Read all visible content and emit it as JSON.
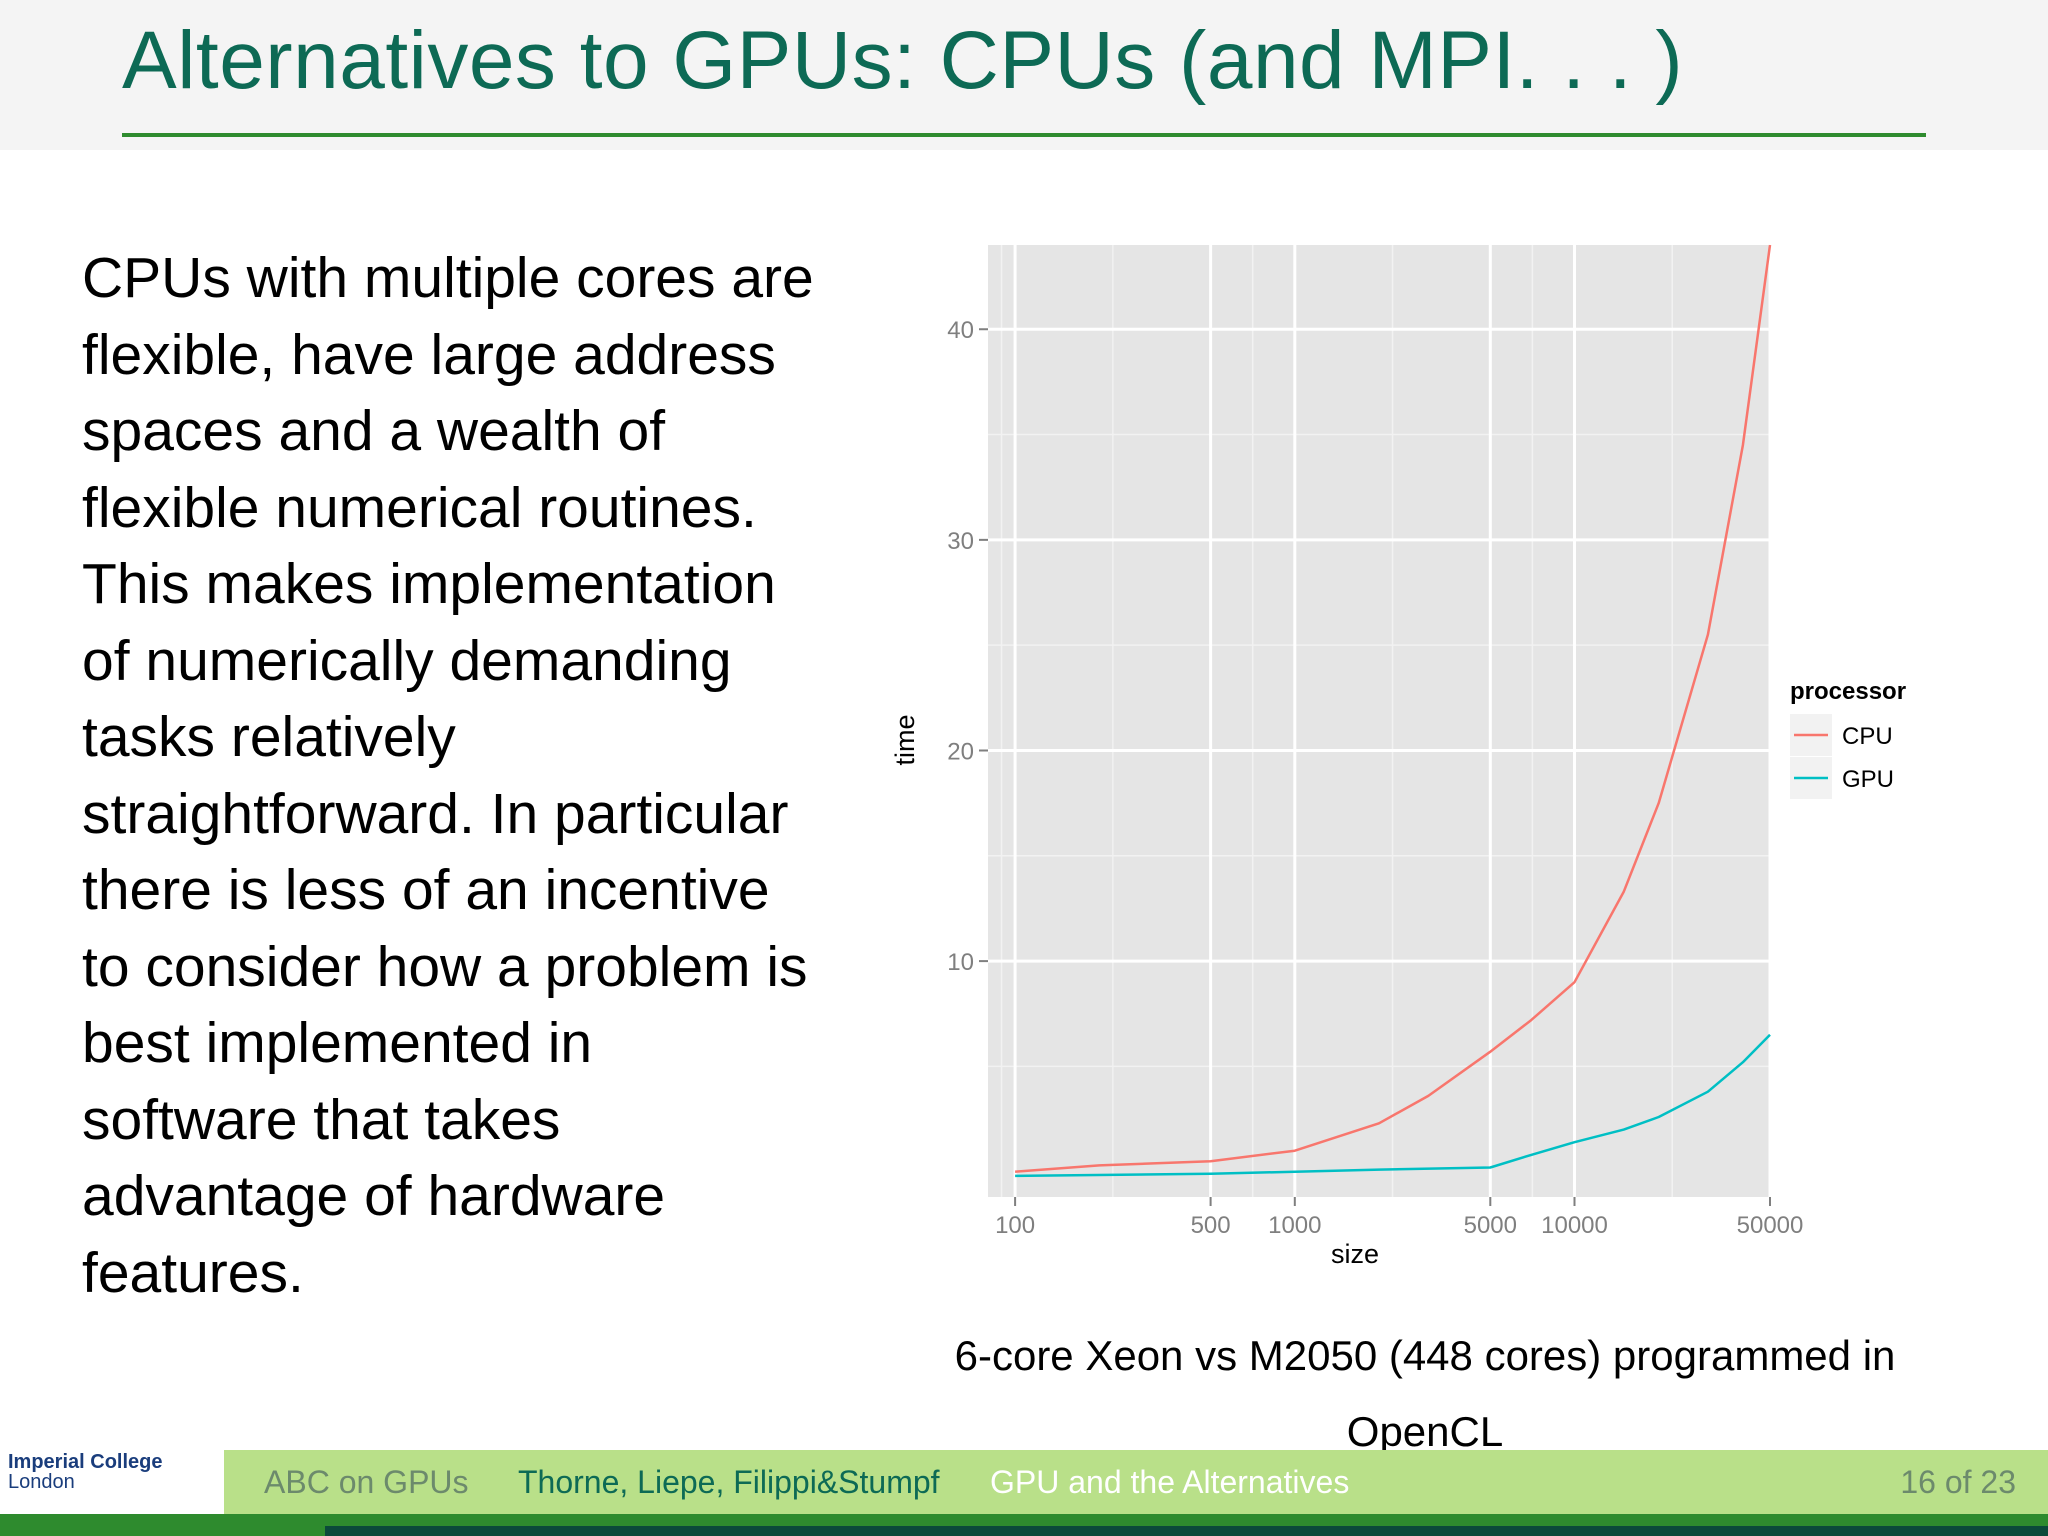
{
  "slide": {
    "title": "Alternatives to GPUs: CPUs (and MPI. . . )",
    "body": "CPUs with multiple cores are flexible, have large address spaces and a wealth of flexible numerical routines. This makes implementation of numerically demanding tasks relatively straightforward. In particular there is less of an incentive to consider how a problem is best implemented in software that takes advantage of hardware features.",
    "caption": "6-core Xeon vs M2050 (448 cores) programmed in OpenCL"
  },
  "footer": {
    "logo_line1": "Imperial College",
    "logo_line2": "London",
    "short_title": "ABC on GPUs",
    "authors": "Thorne, Liepe, Filippi&Stumpf",
    "section": "GPU and the Alternatives",
    "page": "16 of 23"
  },
  "chart_data": {
    "type": "line",
    "xlabel": "size",
    "ylabel": "time",
    "x_scale": "log10",
    "xlim": [
      80,
      50000
    ],
    "ylim": [
      -1.2,
      44
    ],
    "x_ticks": [
      100,
      500,
      1000,
      5000,
      10000,
      50000
    ],
    "x_tick_labels": [
      "100",
      "500",
      "1000",
      "5000",
      "10000",
      "50000"
    ],
    "y_ticks": [
      10,
      20,
      30,
      40
    ],
    "y_tick_labels": [
      "10",
      "20",
      "30",
      "40"
    ],
    "grid": true,
    "legend": {
      "title": "processor",
      "placement": "right"
    },
    "series": [
      {
        "name": "CPU",
        "color": "#f8766d",
        "points": [
          [
            100,
            0.0
          ],
          [
            200,
            0.3
          ],
          [
            500,
            0.5
          ],
          [
            1000,
            1.0
          ],
          [
            2000,
            2.3
          ],
          [
            3000,
            3.6
          ],
          [
            5000,
            5.7
          ],
          [
            7000,
            7.2
          ],
          [
            10000,
            9.0
          ],
          [
            15000,
            13.3
          ],
          [
            20000,
            17.5
          ],
          [
            30000,
            25.5
          ],
          [
            40000,
            34.5
          ],
          [
            50000,
            44.0
          ]
        ]
      },
      {
        "name": "GPU",
        "color": "#00bfc4",
        "points": [
          [
            100,
            -0.2
          ],
          [
            500,
            -0.1
          ],
          [
            1000,
            0.0
          ],
          [
            2000,
            0.1
          ],
          [
            5000,
            0.2
          ],
          [
            7000,
            0.8
          ],
          [
            10000,
            1.4
          ],
          [
            15000,
            2.0
          ],
          [
            20000,
            2.6
          ],
          [
            30000,
            3.8
          ],
          [
            40000,
            5.2
          ],
          [
            50000,
            6.5
          ]
        ]
      }
    ]
  }
}
